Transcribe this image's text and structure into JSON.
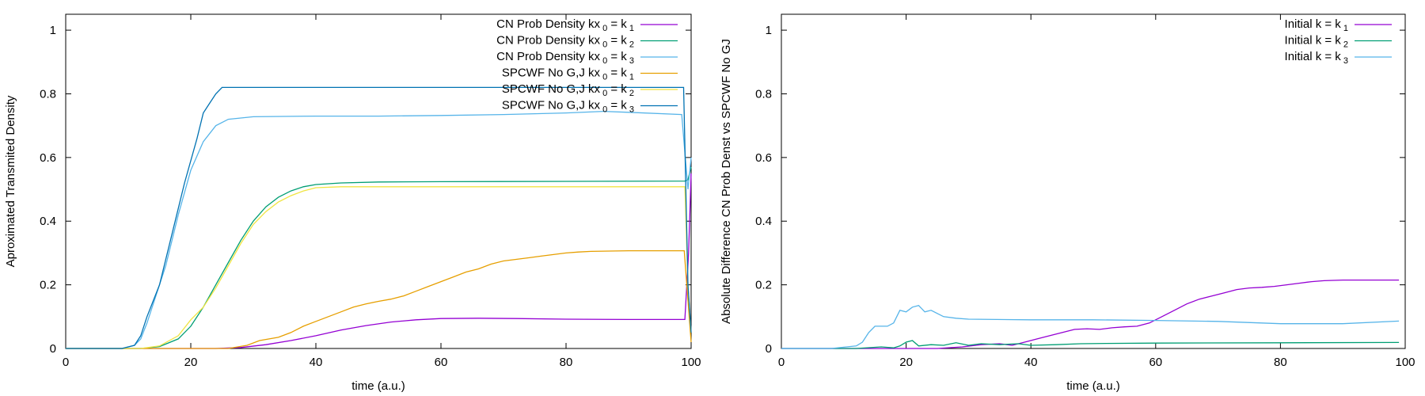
{
  "chart_data": [
    {
      "type": "line",
      "title": "",
      "xlabel": "time (a.u.)",
      "ylabel": "Aproximated Transmited Density",
      "xlim": [
        0,
        100
      ],
      "ylim": [
        0,
        1.05
      ],
      "xticks": [
        0,
        20,
        40,
        60,
        80,
        100
      ],
      "yticks": [
        0,
        0.2,
        0.4,
        0.6,
        0.8,
        1
      ],
      "ytick_labels": [
        "0",
        "0.2",
        "0.4",
        "0.6",
        "0.8",
        "1"
      ],
      "grid": false,
      "legend_position": "top-right",
      "series": [
        {
          "legend": {
            "text": "CN Prob Density kx",
            "sub0": "0",
            "mid": "= k",
            "sub1": "1"
          },
          "color": "#9400d3",
          "points": [
            [
              0,
              0
            ],
            [
              24,
              0
            ],
            [
              28,
              0.003
            ],
            [
              32,
              0.012
            ],
            [
              36,
              0.025
            ],
            [
              40,
              0.04
            ],
            [
              44,
              0.058
            ],
            [
              48,
              0.072
            ],
            [
              52,
              0.083
            ],
            [
              56,
              0.09
            ],
            [
              60,
              0.094
            ],
            [
              66,
              0.095
            ],
            [
              72,
              0.094
            ],
            [
              80,
              0.092
            ],
            [
              90,
              0.091
            ],
            [
              99,
              0.091
            ],
            [
              99.6,
              0.3
            ],
            [
              100,
              0.55
            ]
          ]
        },
        {
          "legend": {
            "text": "CN Prob Density kx",
            "sub0": "0",
            "mid": "= k",
            "sub1": "2"
          },
          "color": "#009e73",
          "points": [
            [
              0,
              0
            ],
            [
              12,
              0
            ],
            [
              15,
              0.006
            ],
            [
              18,
              0.03
            ],
            [
              20,
              0.07
            ],
            [
              22,
              0.13
            ],
            [
              24,
              0.2
            ],
            [
              26,
              0.27
            ],
            [
              28,
              0.34
            ],
            [
              30,
              0.4
            ],
            [
              32,
              0.445
            ],
            [
              34,
              0.475
            ],
            [
              36,
              0.495
            ],
            [
              38,
              0.508
            ],
            [
              40,
              0.515
            ],
            [
              44,
              0.52
            ],
            [
              50,
              0.523
            ],
            [
              60,
              0.524
            ],
            [
              80,
              0.525
            ],
            [
              99,
              0.526
            ],
            [
              99.5,
              0.53
            ],
            [
              100,
              0.57
            ]
          ]
        },
        {
          "legend": {
            "text": "CN Prob Density kx",
            "sub0": "0",
            "mid": "= k",
            "sub1": "3"
          },
          "color": "#56b4e9",
          "points": [
            [
              0,
              0
            ],
            [
              9,
              0
            ],
            [
              11,
              0.01
            ],
            [
              12,
              0.03
            ],
            [
              13,
              0.08
            ],
            [
              14,
              0.14
            ],
            [
              16,
              0.26
            ],
            [
              18,
              0.42
            ],
            [
              20,
              0.56
            ],
            [
              22,
              0.65
            ],
            [
              24,
              0.7
            ],
            [
              26,
              0.72
            ],
            [
              30,
              0.728
            ],
            [
              40,
              0.73
            ],
            [
              50,
              0.73
            ],
            [
              60,
              0.732
            ],
            [
              70,
              0.735
            ],
            [
              80,
              0.74
            ],
            [
              86,
              0.745
            ],
            [
              90,
              0.742
            ],
            [
              98.5,
              0.735
            ],
            [
              99.5,
              0.5
            ],
            [
              100,
              0.6
            ]
          ]
        },
        {
          "legend": {
            "text": "SPCWF No G,J kx",
            "sub0": "0",
            "mid": "= k",
            "sub1": "1"
          },
          "color": "#e69f00",
          "points": [
            [
              0,
              0
            ],
            [
              26,
              0
            ],
            [
              29,
              0.01
            ],
            [
              31,
              0.025
            ],
            [
              34,
              0.035
            ],
            [
              36,
              0.05
            ],
            [
              38,
              0.07
            ],
            [
              40,
              0.085
            ],
            [
              42,
              0.1
            ],
            [
              44,
              0.115
            ],
            [
              46,
              0.13
            ],
            [
              48,
              0.14
            ],
            [
              50,
              0.148
            ],
            [
              52,
              0.155
            ],
            [
              54,
              0.165
            ],
            [
              56,
              0.18
            ],
            [
              58,
              0.195
            ],
            [
              60,
              0.21
            ],
            [
              62,
              0.225
            ],
            [
              64,
              0.24
            ],
            [
              66,
              0.25
            ],
            [
              68,
              0.265
            ],
            [
              70,
              0.275
            ],
            [
              72,
              0.28
            ],
            [
              74,
              0.285
            ],
            [
              76,
              0.29
            ],
            [
              78,
              0.295
            ],
            [
              80,
              0.3
            ],
            [
              82,
              0.303
            ],
            [
              84,
              0.305
            ],
            [
              90,
              0.307
            ],
            [
              98.9,
              0.307
            ],
            [
              99.3,
              0.2
            ],
            [
              100,
              0.02
            ]
          ]
        },
        {
          "legend": {
            "text": "SPCWF No G,J kx",
            "sub0": "0",
            "mid": "= k",
            "sub1": "2"
          },
          "color": "#f0e442",
          "points": [
            [
              0,
              0
            ],
            [
              12,
              0
            ],
            [
              15,
              0.008
            ],
            [
              18,
              0.04
            ],
            [
              20,
              0.09
            ],
            [
              22,
              0.13
            ],
            [
              24,
              0.19
            ],
            [
              26,
              0.26
            ],
            [
              28,
              0.33
            ],
            [
              30,
              0.39
            ],
            [
              32,
              0.43
            ],
            [
              34,
              0.46
            ],
            [
              36,
              0.48
            ],
            [
              38,
              0.495
            ],
            [
              40,
              0.505
            ],
            [
              44,
              0.508
            ],
            [
              60,
              0.508
            ],
            [
              80,
              0.508
            ],
            [
              99,
              0.508
            ],
            [
              99.5,
              0.2
            ],
            [
              100,
              0.05
            ]
          ]
        },
        {
          "legend": {
            "text": "SPCWF No G,J kx",
            "sub0": "0",
            "mid": "= k",
            "sub1": "3"
          },
          "color": "#0072b2",
          "points": [
            [
              0,
              0
            ],
            [
              9,
              0
            ],
            [
              11,
              0.01
            ],
            [
              12,
              0.04
            ],
            [
              13,
              0.1
            ],
            [
              15,
              0.2
            ],
            [
              17,
              0.36
            ],
            [
              19,
              0.52
            ],
            [
              21,
              0.66
            ],
            [
              22,
              0.74
            ],
            [
              23,
              0.77
            ],
            [
              24,
              0.8
            ],
            [
              25,
              0.82
            ],
            [
              40,
              0.82
            ],
            [
              60,
              0.82
            ],
            [
              80,
              0.82
            ],
            [
              98.8,
              0.82
            ],
            [
              99.5,
              0.2
            ],
            [
              100,
              0.05
            ]
          ]
        }
      ]
    },
    {
      "type": "line",
      "title": "",
      "xlabel": "time (a.u.)",
      "ylabel": "Absolute Difference CN Prob Denst vs SPCWF No GJ",
      "xlim": [
        0,
        100
      ],
      "ylim": [
        0,
        1.05
      ],
      "xticks": [
        0,
        20,
        40,
        60,
        80,
        100
      ],
      "yticks": [
        0,
        0.2,
        0.4,
        0.6,
        0.8,
        1
      ],
      "ytick_labels": [
        "0",
        "0.2",
        "0.4",
        "0.6",
        "0.8",
        "1"
      ],
      "grid": false,
      "legend_position": "top-right",
      "series": [
        {
          "legend": {
            "text": "Initial k = k",
            "sub0": "",
            "mid": "",
            "sub1": "1"
          },
          "color": "#9400d3",
          "points": [
            [
              0,
              0
            ],
            [
              25,
              0
            ],
            [
              29,
              0.005
            ],
            [
              32,
              0.012
            ],
            [
              35,
              0.015
            ],
            [
              37,
              0.01
            ],
            [
              39,
              0.02
            ],
            [
              41,
              0.03
            ],
            [
              43,
              0.04
            ],
            [
              45,
              0.05
            ],
            [
              47,
              0.06
            ],
            [
              49,
              0.062
            ],
            [
              51,
              0.06
            ],
            [
              53,
              0.065
            ],
            [
              55,
              0.068
            ],
            [
              57,
              0.07
            ],
            [
              59,
              0.08
            ],
            [
              61,
              0.1
            ],
            [
              63,
              0.12
            ],
            [
              65,
              0.14
            ],
            [
              67,
              0.155
            ],
            [
              69,
              0.165
            ],
            [
              71,
              0.175
            ],
            [
              73,
              0.185
            ],
            [
              75,
              0.19
            ],
            [
              77,
              0.192
            ],
            [
              79,
              0.195
            ],
            [
              81,
              0.2
            ],
            [
              83,
              0.205
            ],
            [
              85,
              0.21
            ],
            [
              87,
              0.213
            ],
            [
              90,
              0.215
            ],
            [
              99,
              0.215
            ]
          ]
        },
        {
          "legend": {
            "text": "Initial k = k",
            "sub0": "",
            "mid": "",
            "sub1": "2"
          },
          "color": "#009e73",
          "points": [
            [
              0,
              0
            ],
            [
              12,
              0
            ],
            [
              16,
              0.005
            ],
            [
              18,
              0.002
            ],
            [
              19,
              0.008
            ],
            [
              20,
              0.02
            ],
            [
              21,
              0.025
            ],
            [
              22,
              0.008
            ],
            [
              24,
              0.012
            ],
            [
              26,
              0.01
            ],
            [
              28,
              0.018
            ],
            [
              30,
              0.01
            ],
            [
              32,
              0.015
            ],
            [
              35,
              0.012
            ],
            [
              38,
              0.015
            ],
            [
              40,
              0.01
            ],
            [
              44,
              0.012
            ],
            [
              48,
              0.015
            ],
            [
              52,
              0.016
            ],
            [
              60,
              0.017
            ],
            [
              80,
              0.018
            ],
            [
              99,
              0.019
            ]
          ]
        },
        {
          "legend": {
            "text": "Initial k = k",
            "sub0": "",
            "mid": "",
            "sub1": "3"
          },
          "color": "#56b4e9",
          "points": [
            [
              0,
              0
            ],
            [
              8,
              0
            ],
            [
              12,
              0.008
            ],
            [
              13,
              0.02
            ],
            [
              14,
              0.05
            ],
            [
              15,
              0.07
            ],
            [
              17,
              0.07
            ],
            [
              18,
              0.08
            ],
            [
              19,
              0.12
            ],
            [
              20,
              0.115
            ],
            [
              21,
              0.13
            ],
            [
              22,
              0.135
            ],
            [
              23,
              0.115
            ],
            [
              24,
              0.12
            ],
            [
              25,
              0.11
            ],
            [
              26,
              0.1
            ],
            [
              28,
              0.095
            ],
            [
              30,
              0.092
            ],
            [
              40,
              0.09
            ],
            [
              50,
              0.09
            ],
            [
              60,
              0.088
            ],
            [
              70,
              0.085
            ],
            [
              80,
              0.078
            ],
            [
              90,
              0.078
            ],
            [
              99,
              0.086
            ]
          ]
        }
      ]
    }
  ]
}
